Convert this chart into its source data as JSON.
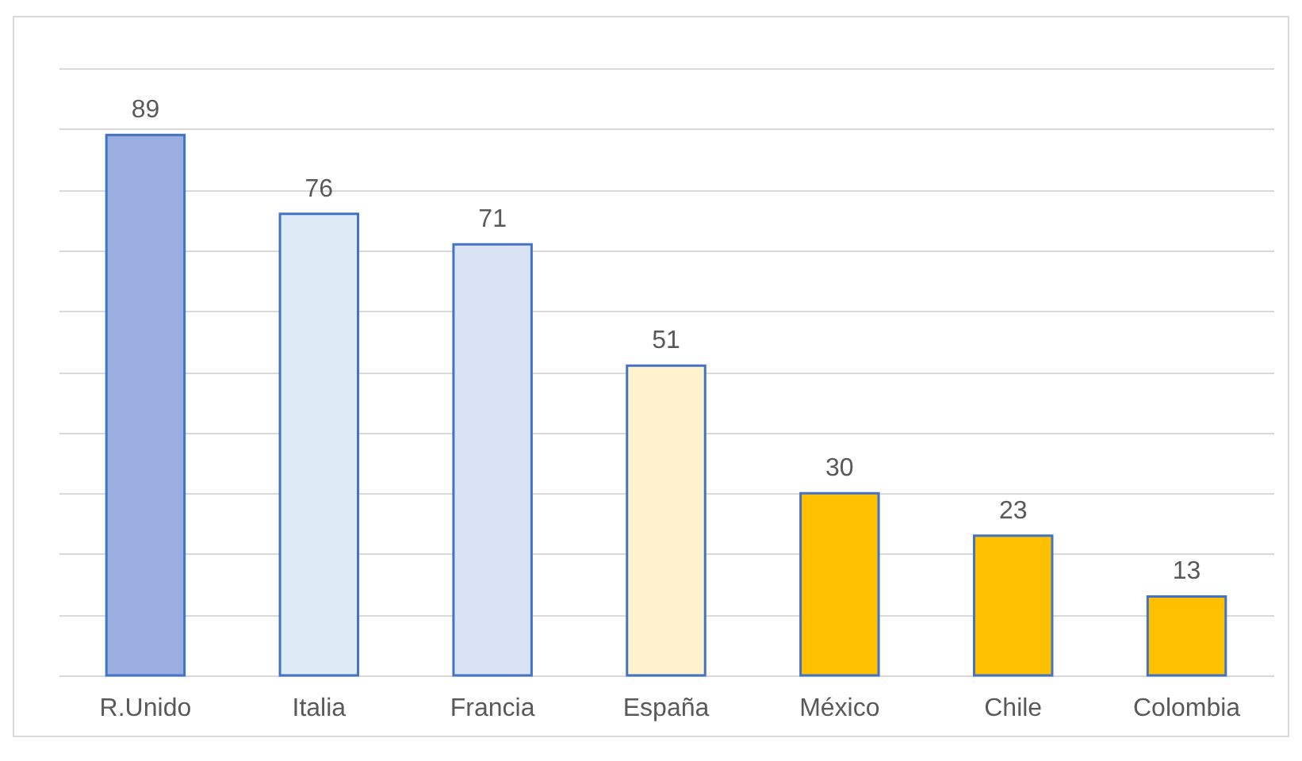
{
  "chart_data": {
    "type": "bar",
    "categories": [
      "R.Unido",
      "Italia",
      "Francia",
      "España",
      "México",
      "Chile",
      "Colombia"
    ],
    "values": [
      89,
      76,
      71,
      51,
      30,
      23,
      13
    ],
    "colors": [
      "#9aafe0",
      "#deebf7",
      "#dae3f3",
      "#fff2cc",
      "#ffc000",
      "#ffc000",
      "#ffc000"
    ],
    "ylim": [
      0,
      100
    ],
    "tick_labels": "x",
    "grid": "y",
    "data_labels": true,
    "legend": false
  }
}
